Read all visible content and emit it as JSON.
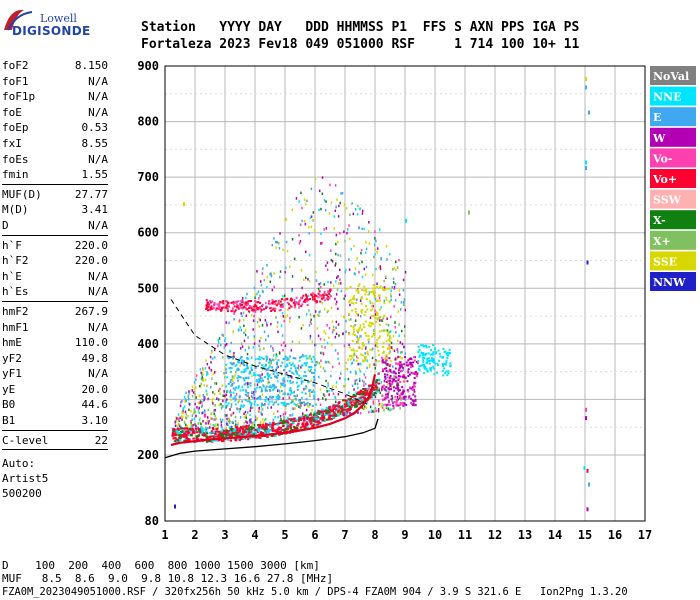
{
  "logo": {
    "line1": "Lowell",
    "line2": "DIGISONDE"
  },
  "header": {
    "row1": "Station   YYYY DAY   DDD HHMMSS P1  FFS S AXN PPS IGA PS",
    "row2": "Fortaleza 2023 Fev18 049 051000 RSF     1 714 100 10+ 11"
  },
  "params": [
    [
      {
        "k": "foF2",
        "v": "8.150"
      },
      {
        "k": "foF1",
        "v": "N/A"
      },
      {
        "k": "foF1p",
        "v": "N/A"
      },
      {
        "k": "foE",
        "v": "N/A"
      },
      {
        "k": "foEp",
        "v": "0.53"
      },
      {
        "k": "fxI",
        "v": "8.55"
      },
      {
        "k": "foEs",
        "v": "N/A"
      },
      {
        "k": "fmin",
        "v": "1.55"
      }
    ],
    [
      {
        "k": "MUF(D)",
        "v": "27.77"
      },
      {
        "k": "M(D)",
        "v": "3.41"
      },
      {
        "k": "D",
        "v": "N/A"
      }
    ],
    [
      {
        "k": "h`F",
        "v": "220.0"
      },
      {
        "k": "h`F2",
        "v": "220.0"
      },
      {
        "k": "h`E",
        "v": "N/A"
      },
      {
        "k": "h`Es",
        "v": "N/A"
      }
    ],
    [
      {
        "k": "hmF2",
        "v": "267.9"
      },
      {
        "k": "hmF1",
        "v": "N/A"
      },
      {
        "k": "hmE",
        "v": "110.0"
      },
      {
        "k": "yF2",
        "v": "49.8"
      },
      {
        "k": "yF1",
        "v": "N/A"
      },
      {
        "k": "yE",
        "v": "20.0"
      },
      {
        "k": "B0",
        "v": "44.6"
      },
      {
        "k": "B1",
        "v": "3.10"
      }
    ],
    [
      {
        "k": "C-level",
        "v": "22"
      }
    ]
  ],
  "auto": {
    "l1": "Auto:",
    "l2": "Artist5",
    "l3": "500200"
  },
  "legend": [
    {
      "label": "NoVal",
      "color": "#808080",
      "text": "#ffffff"
    },
    {
      "label": "NNE",
      "color": "#00e5ff",
      "text": "#ffffff"
    },
    {
      "label": "E",
      "color": "#3fa8f0",
      "text": "#ffffff"
    },
    {
      "label": "W",
      "color": "#b400b4",
      "text": "#ffffff"
    },
    {
      "label": "Vo-",
      "color": "#ff40b0",
      "text": "#ffffff"
    },
    {
      "label": "Vo+",
      "color": "#ff0030",
      "text": "#ffffff"
    },
    {
      "label": "SSW",
      "color": "#ffb0b0",
      "text": "#ffffff"
    },
    {
      "label": "X-",
      "color": "#108010",
      "text": "#ffffff"
    },
    {
      "label": "X+",
      "color": "#80c060",
      "text": "#ffffff"
    },
    {
      "label": "SSE",
      "color": "#d8d800",
      "text": "#ffffff"
    },
    {
      "label": "NNW",
      "color": "#2020c8",
      "text": "#ffffff"
    }
  ],
  "footer": {
    "d_row": "D    100  200  400  600  800 1000 1500 3000 [km]",
    "muf_row": "MUF   8.5  8.6  9.0  9.8 10.8 12.3 16.6 27.8 [MHz]",
    "file_row": "FZA0M_2023049051000.RSF / 320fx256h 50 kHz 5.0 km / DPS-4 FZA0M 904 / 3.9 S 321.6 E   Ion2Png 1.3.20"
  },
  "chart_data": {
    "type": "scatter",
    "title": "",
    "xlabel": "",
    "ylabel": "",
    "xlim": [
      1,
      17
    ],
    "ylim": [
      80,
      900
    ],
    "xticks": [
      1,
      2,
      3,
      4,
      5,
      6,
      7,
      8,
      9,
      10,
      11,
      12,
      13,
      14,
      15,
      16,
      17
    ],
    "yticks": [
      80,
      200,
      300,
      400,
      500,
      600,
      700,
      800,
      900
    ],
    "grid": true,
    "legend_position": "right",
    "ionogram_trace": {
      "x": [
        1.2,
        1.5,
        2.0,
        2.5,
        3.0,
        3.5,
        4.0,
        4.5,
        5.0,
        5.5,
        6.0,
        6.5,
        7.0,
        7.3,
        7.6,
        7.8,
        7.9,
        8.0
      ],
      "y": [
        218,
        222,
        225,
        228,
        230,
        232,
        234,
        237,
        240,
        244,
        249,
        256,
        266,
        275,
        290,
        305,
        320,
        345
      ]
    },
    "profile_line": {
      "x": [
        1.0,
        1.5,
        2.0,
        3.0,
        4.0,
        5.0,
        6.0,
        7.0,
        7.6,
        8.0,
        8.1
      ],
      "y": [
        195,
        203,
        207,
        211,
        215,
        220,
        226,
        233,
        240,
        248,
        265
      ]
    },
    "dashed_line": {
      "x": [
        1.2,
        2.0,
        3.0,
        4.0,
        5.0,
        6.0,
        7.0,
        7.8
      ],
      "y": [
        480,
        415,
        380,
        360,
        345,
        330,
        310,
        290
      ]
    }
  }
}
